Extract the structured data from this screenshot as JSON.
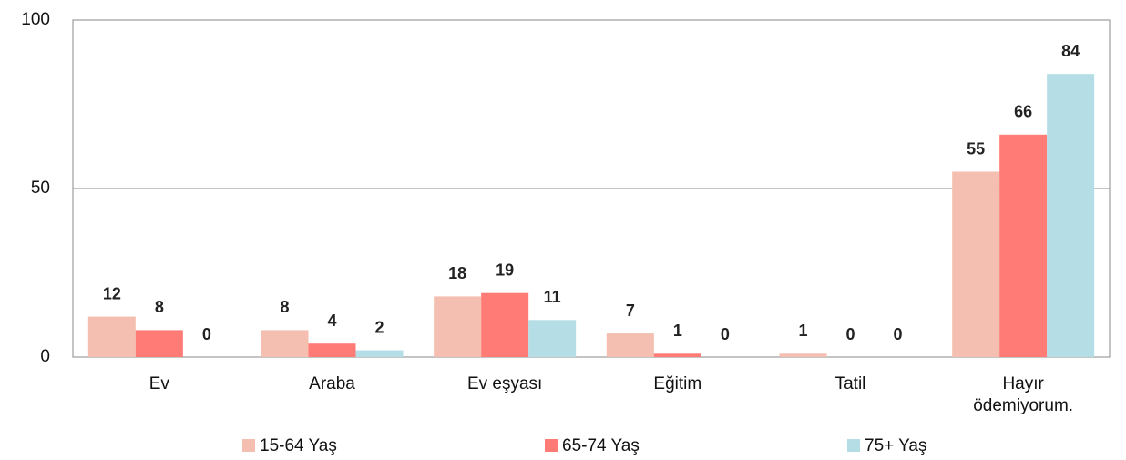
{
  "chart_data": {
    "type": "bar",
    "categories": [
      "Ev",
      "Araba",
      "Ev eşyası",
      "Eğitim",
      "Tatil",
      "Hayır ödemiyorum."
    ],
    "series": [
      {
        "name": "15-64 Yaş",
        "color": "#f4bfb0",
        "values": [
          12,
          8,
          18,
          7,
          1,
          55
        ]
      },
      {
        "name": "65-74 Yaş",
        "color": "#ff7b76",
        "values": [
          8,
          4,
          19,
          1,
          0,
          66
        ]
      },
      {
        "name": "75+ Yaş",
        "color": "#b4dde6",
        "values": [
          0,
          2,
          11,
          0,
          0,
          84
        ]
      }
    ],
    "ylim": [
      0,
      100
    ],
    "yticks": [
      0,
      50,
      100
    ],
    "grid": true,
    "legend": "bottom"
  }
}
